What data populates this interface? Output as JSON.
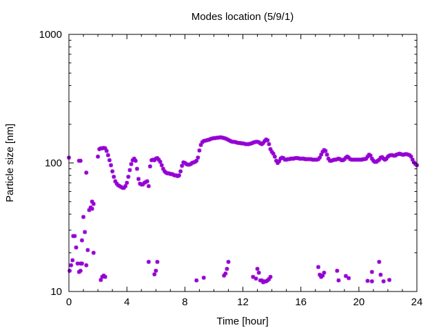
{
  "chart_data": {
    "type": "scatter",
    "title": "Modes location (5/9/1)",
    "xlabel": "Time [hour]",
    "ylabel": "Particle size [nm]",
    "xlim": [
      0,
      24
    ],
    "ylim": [
      10,
      1000
    ],
    "yscale": "log",
    "grid": false,
    "legend": "none",
    "marker": "star",
    "color": "#9400d3",
    "xticks": [
      0,
      4,
      8,
      12,
      16,
      20,
      24
    ],
    "xtick_labels": [
      "0",
      "4",
      "8",
      "12",
      "16",
      "20",
      "24"
    ],
    "yticks": [
      10,
      100,
      1000
    ],
    "ytick_labels": [
      "10",
      "100",
      "1000"
    ],
    "series": [
      {
        "points": [
          [
            0.0,
            110
          ],
          [
            0.7,
            104
          ],
          [
            0.8,
            104
          ],
          [
            1.2,
            84
          ],
          [
            1.5,
            45
          ],
          [
            1.6,
            50
          ],
          [
            1.7,
            48
          ],
          [
            2.0,
            112
          ],
          [
            2.1,
            128
          ],
          [
            2.2,
            130
          ],
          [
            2.3,
            130
          ],
          [
            2.4,
            131
          ],
          [
            2.5,
            130
          ],
          [
            2.6,
            124
          ],
          [
            2.7,
            115
          ],
          [
            2.8,
            105
          ],
          [
            2.9,
            96
          ],
          [
            3.0,
            86
          ],
          [
            3.1,
            78
          ],
          [
            3.2,
            72
          ],
          [
            3.3,
            69
          ],
          [
            3.4,
            67
          ],
          [
            3.5,
            66
          ],
          [
            3.6,
            65
          ],
          [
            3.7,
            64
          ],
          [
            3.8,
            64
          ],
          [
            3.9,
            66
          ],
          [
            4.0,
            70
          ],
          [
            4.1,
            78
          ],
          [
            4.2,
            88
          ],
          [
            4.3,
            98
          ],
          [
            4.4,
            105
          ],
          [
            4.5,
            108
          ],
          [
            4.6,
            104
          ],
          [
            4.7,
            90
          ],
          [
            4.8,
            75
          ],
          [
            4.9,
            69
          ],
          [
            5.0,
            68
          ],
          [
            5.1,
            68
          ],
          [
            5.2,
            70
          ],
          [
            5.3,
            71
          ],
          [
            5.4,
            72
          ],
          [
            5.5,
            66
          ],
          [
            5.6,
            94
          ],
          [
            5.7,
            105
          ],
          [
            5.8,
            106
          ],
          [
            5.9,
            105
          ],
          [
            6.0,
            108
          ],
          [
            6.1,
            109
          ],
          [
            6.2,
            106
          ],
          [
            6.3,
            102
          ],
          [
            6.4,
            96
          ],
          [
            6.5,
            90
          ],
          [
            6.6,
            86
          ],
          [
            6.7,
            84
          ],
          [
            6.8,
            83
          ],
          [
            6.9,
            83
          ],
          [
            7.0,
            82
          ],
          [
            7.1,
            82
          ],
          [
            7.2,
            81
          ],
          [
            7.3,
            80
          ],
          [
            7.4,
            80
          ],
          [
            7.5,
            79
          ],
          [
            7.6,
            80
          ],
          [
            7.7,
            86
          ],
          [
            7.8,
            95
          ],
          [
            7.9,
            101
          ],
          [
            8.0,
            100
          ],
          [
            8.1,
            98
          ],
          [
            8.2,
            97
          ],
          [
            8.3,
            97
          ],
          [
            8.4,
            98
          ],
          [
            8.5,
            100
          ],
          [
            8.6,
            101
          ],
          [
            8.7,
            102
          ],
          [
            8.8,
            104
          ],
          [
            8.9,
            110
          ],
          [
            9.0,
            125
          ],
          [
            9.1,
            138
          ],
          [
            9.2,
            145
          ],
          [
            9.3,
            148
          ],
          [
            9.4,
            149
          ],
          [
            9.5,
            150
          ],
          [
            9.6,
            151
          ],
          [
            9.7,
            152
          ],
          [
            9.8,
            154
          ],
          [
            9.9,
            155
          ],
          [
            10.0,
            156
          ],
          [
            10.1,
            156
          ],
          [
            10.2,
            157
          ],
          [
            10.3,
            157
          ],
          [
            10.4,
            158
          ],
          [
            10.5,
            158
          ],
          [
            10.6,
            157
          ],
          [
            10.7,
            156
          ],
          [
            10.8,
            155
          ],
          [
            10.9,
            153
          ],
          [
            11.0,
            151
          ],
          [
            11.1,
            149
          ],
          [
            11.2,
            147
          ],
          [
            11.3,
            146
          ],
          [
            11.4,
            146
          ],
          [
            11.5,
            145
          ],
          [
            11.6,
            144
          ],
          [
            11.7,
            143
          ],
          [
            11.8,
            143
          ],
          [
            11.9,
            142
          ],
          [
            12.0,
            142
          ],
          [
            12.1,
            141
          ],
          [
            12.2,
            140
          ],
          [
            12.3,
            140
          ],
          [
            12.4,
            140
          ],
          [
            12.5,
            141
          ],
          [
            12.6,
            142
          ],
          [
            12.7,
            144
          ],
          [
            12.8,
            145
          ],
          [
            12.9,
            146
          ],
          [
            13.0,
            146
          ],
          [
            13.1,
            145
          ],
          [
            13.2,
            142
          ],
          [
            13.3,
            140
          ],
          [
            13.4,
            143
          ],
          [
            13.5,
            148
          ],
          [
            13.6,
            152
          ],
          [
            13.7,
            150
          ],
          [
            13.8,
            140
          ],
          [
            13.9,
            128
          ],
          [
            14.0,
            122
          ],
          [
            14.1,
            118
          ],
          [
            14.2,
            112
          ],
          [
            14.3,
            104
          ],
          [
            14.4,
            100
          ],
          [
            14.5,
            103
          ],
          [
            14.6,
            108
          ],
          [
            14.7,
            110
          ],
          [
            14.8,
            109
          ],
          [
            14.9,
            106
          ],
          [
            15.0,
            106
          ],
          [
            15.1,
            107
          ],
          [
            15.2,
            107
          ],
          [
            15.3,
            108
          ],
          [
            15.4,
            108
          ],
          [
            15.5,
            108
          ],
          [
            15.6,
            109
          ],
          [
            15.7,
            109
          ],
          [
            15.8,
            109
          ],
          [
            15.9,
            108
          ],
          [
            16.0,
            108
          ],
          [
            16.1,
            108
          ],
          [
            16.2,
            108
          ],
          [
            16.3,
            107
          ],
          [
            16.4,
            107
          ],
          [
            16.5,
            107
          ],
          [
            16.6,
            107
          ],
          [
            16.7,
            107
          ],
          [
            16.8,
            106
          ],
          [
            16.9,
            106
          ],
          [
            17.0,
            106
          ],
          [
            17.1,
            106
          ],
          [
            17.2,
            107
          ],
          [
            17.3,
            110
          ],
          [
            17.4,
            116
          ],
          [
            17.5,
            122
          ],
          [
            17.6,
            126
          ],
          [
            17.7,
            124
          ],
          [
            17.8,
            116
          ],
          [
            17.9,
            108
          ],
          [
            18.0,
            104
          ],
          [
            18.1,
            104
          ],
          [
            18.2,
            105
          ],
          [
            18.3,
            106
          ],
          [
            18.4,
            106
          ],
          [
            18.5,
            107
          ],
          [
            18.6,
            108
          ],
          [
            18.7,
            107
          ],
          [
            18.8,
            105
          ],
          [
            18.9,
            105
          ],
          [
            19.0,
            107
          ],
          [
            19.1,
            110
          ],
          [
            19.2,
            112
          ],
          [
            19.3,
            110
          ],
          [
            19.4,
            107
          ],
          [
            19.5,
            106
          ],
          [
            19.6,
            106
          ],
          [
            19.7,
            106
          ],
          [
            19.8,
            106
          ],
          [
            19.9,
            106
          ],
          [
            20.0,
            106
          ],
          [
            20.1,
            106
          ],
          [
            20.2,
            106
          ],
          [
            20.3,
            107
          ],
          [
            20.4,
            107
          ],
          [
            20.5,
            108
          ],
          [
            20.6,
            112
          ],
          [
            20.7,
            116
          ],
          [
            20.8,
            114
          ],
          [
            20.9,
            108
          ],
          [
            21.0,
            104
          ],
          [
            21.1,
            102
          ],
          [
            21.2,
            102
          ],
          [
            21.3,
            104
          ],
          [
            21.4,
            106
          ],
          [
            21.5,
            110
          ],
          [
            21.6,
            111
          ],
          [
            21.7,
            108
          ],
          [
            21.8,
            106
          ],
          [
            21.9,
            108
          ],
          [
            22.0,
            112
          ],
          [
            22.1,
            114
          ],
          [
            22.2,
            115
          ],
          [
            22.3,
            115
          ],
          [
            22.4,
            114
          ],
          [
            22.5,
            114
          ],
          [
            22.6,
            116
          ],
          [
            22.7,
            117
          ],
          [
            22.8,
            118
          ],
          [
            22.9,
            117
          ],
          [
            23.0,
            116
          ],
          [
            23.1,
            116
          ],
          [
            23.2,
            117
          ],
          [
            23.3,
            117
          ],
          [
            23.4,
            116
          ],
          [
            23.5,
            115
          ],
          [
            23.6,
            112
          ],
          [
            23.7,
            106
          ],
          [
            23.8,
            101
          ],
          [
            23.9,
            98
          ],
          [
            24.0,
            96
          ],
          [
            0.05,
            14.5
          ],
          [
            0.15,
            16
          ],
          [
            0.25,
            17.5
          ],
          [
            0.3,
            27
          ],
          [
            0.4,
            27
          ],
          [
            0.5,
            22
          ],
          [
            0.6,
            16.5
          ],
          [
            0.7,
            14.2
          ],
          [
            0.8,
            14.5
          ],
          [
            0.8,
            16.5
          ],
          [
            0.9,
            16.5
          ],
          [
            0.9,
            25
          ],
          [
            1.0,
            38
          ],
          [
            1.1,
            29
          ],
          [
            1.2,
            16
          ],
          [
            1.3,
            21
          ],
          [
            1.4,
            43
          ],
          [
            1.6,
            44
          ],
          [
            1.7,
            20
          ],
          [
            2.2,
            12.3
          ],
          [
            2.3,
            13
          ],
          [
            2.4,
            13.3
          ],
          [
            2.5,
            13
          ],
          [
            5.5,
            17
          ],
          [
            5.9,
            13.6
          ],
          [
            6.0,
            14.5
          ],
          [
            6.1,
            17
          ],
          [
            8.8,
            12.2
          ],
          [
            9.3,
            12.8
          ],
          [
            10.7,
            13.3
          ],
          [
            10.8,
            13.8
          ],
          [
            10.9,
            15
          ],
          [
            11.0,
            17
          ],
          [
            12.7,
            13
          ],
          [
            12.9,
            12.6
          ],
          [
            13.0,
            15
          ],
          [
            13.1,
            14
          ],
          [
            13.2,
            12.2
          ],
          [
            13.3,
            12.2
          ],
          [
            13.4,
            11.8
          ],
          [
            13.5,
            12
          ],
          [
            13.6,
            12
          ],
          [
            13.7,
            12.2
          ],
          [
            13.8,
            12.5
          ],
          [
            13.9,
            13
          ],
          [
            17.2,
            15.5
          ],
          [
            17.3,
            13.5
          ],
          [
            17.4,
            13
          ],
          [
            17.5,
            13.3
          ],
          [
            17.6,
            14
          ],
          [
            18.5,
            14.5
          ],
          [
            18.6,
            12.2
          ],
          [
            19.1,
            13.2
          ],
          [
            19.3,
            12.7
          ],
          [
            20.6,
            12.1
          ],
          [
            20.9,
            12
          ],
          [
            20.9,
            14.2
          ],
          [
            21.4,
            17
          ],
          [
            21.5,
            13.5
          ],
          [
            21.7,
            12
          ],
          [
            22.1,
            12.3
          ]
        ]
      }
    ]
  }
}
